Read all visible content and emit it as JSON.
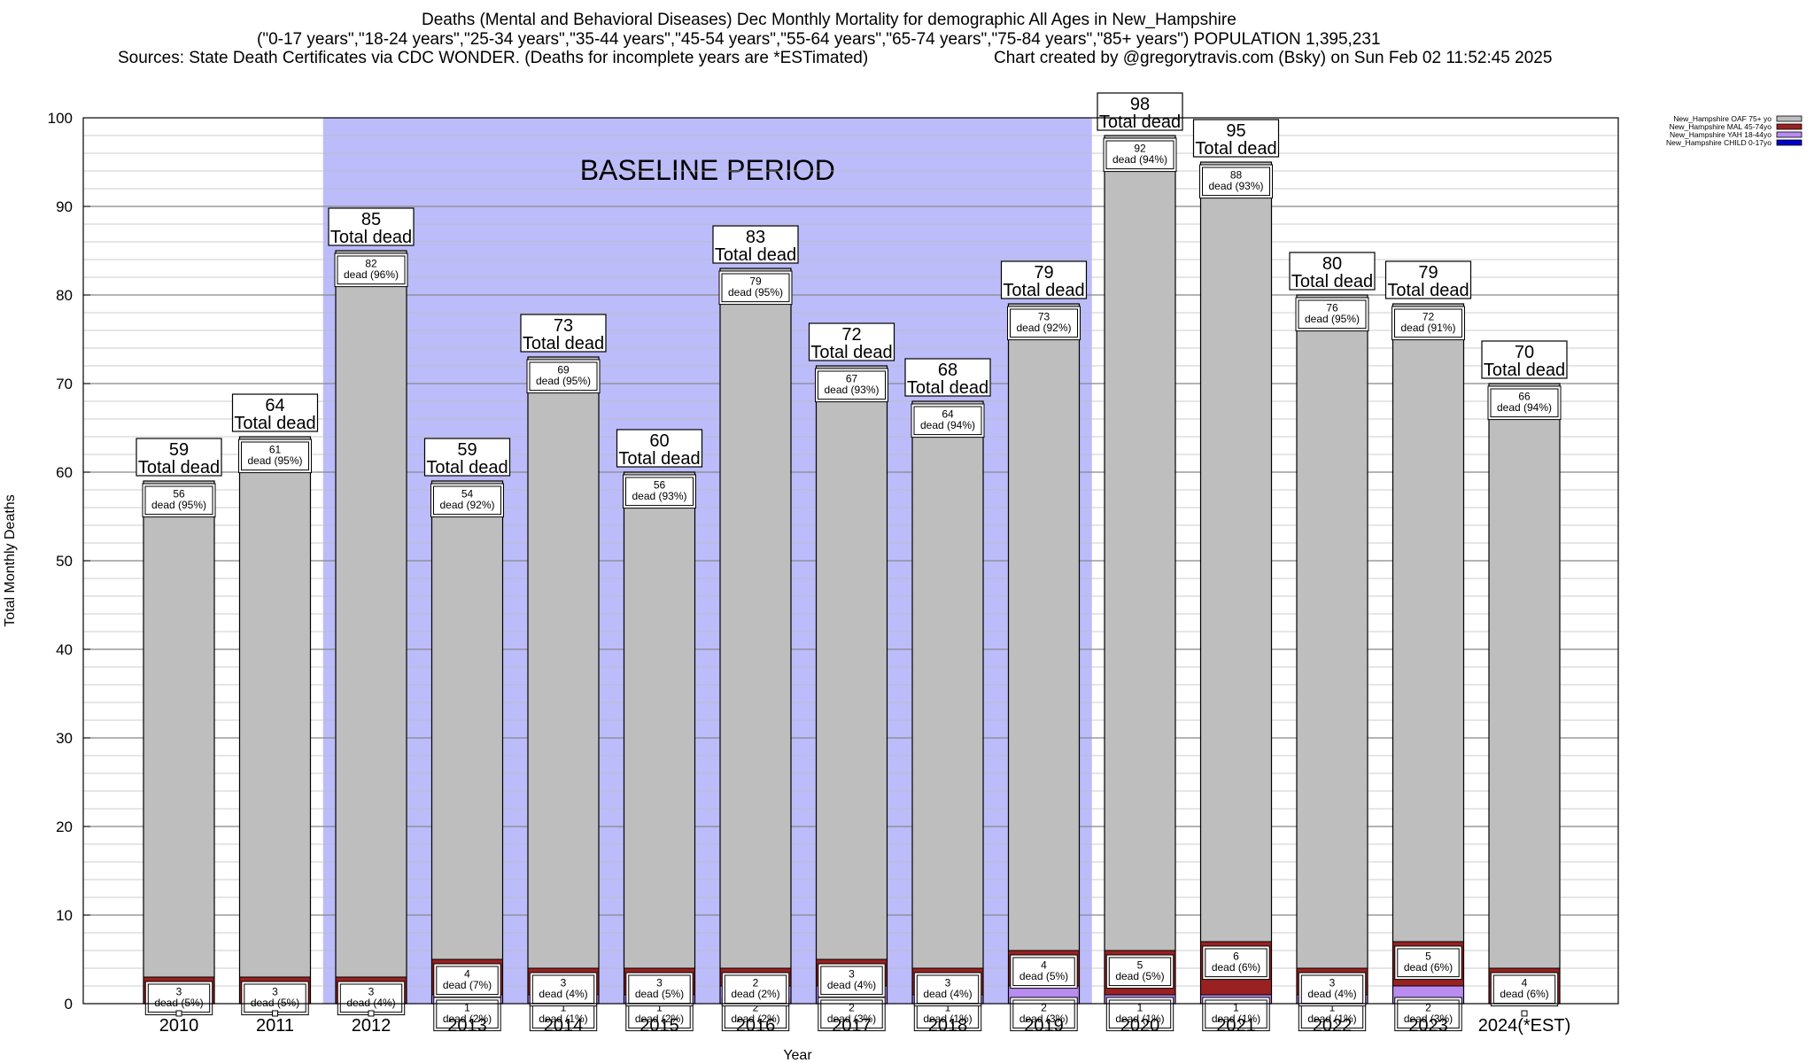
{
  "header": {
    "title": "Deaths (Mental and Behavioral Diseases) Dec Monthly Mortality for demographic All Ages in New_Hampshire",
    "subtitle": "(\"0-17 years\",\"18-24 years\",\"25-34 years\",\"35-44 years\",\"45-54 years\",\"55-64 years\",\"65-74 years\",\"75-84 years\",\"85+ years\") POPULATION 1,395,231",
    "sources": "Sources: State Death Certificates via CDC WONDER. (Deaths for incomplete years are *ESTimated)",
    "credit": "Chart created by @gregorytravis.com (Bsky) on Sun Feb 02 11:52:45 2025"
  },
  "chart_data": {
    "type": "bar",
    "stacked": true,
    "xlabel": "Year",
    "ylabel": "Total Monthly Deaths",
    "ylim": [
      0,
      100
    ],
    "yticks": [
      0,
      10,
      20,
      30,
      40,
      50,
      60,
      70,
      80,
      90,
      100
    ],
    "grid": true,
    "legend_position": "top-right",
    "categories": [
      "2010",
      "2011",
      "2012",
      "2013",
      "2014",
      "2015",
      "2016",
      "2017",
      "2018",
      "2019",
      "2020",
      "2021",
      "2022",
      "2023",
      "2024(*EST)"
    ],
    "totals": [
      59,
      64,
      85,
      59,
      73,
      60,
      83,
      72,
      68,
      79,
      98,
      95,
      80,
      79,
      70
    ],
    "total_label_suffix": "Total dead",
    "series": [
      {
        "name": "New_Hampshire CHILD 0-17yo",
        "color": "#0000c8",
        "values": [
          0,
          0,
          0,
          0,
          0,
          0,
          0,
          0,
          0,
          0,
          0,
          0,
          0,
          0,
          0
        ],
        "labels": [
          "",
          "",
          "",
          "",
          "",
          "",
          "",
          "",
          "",
          "",
          "",
          "",
          "",
          "",
          ""
        ]
      },
      {
        "name": "New_Hampshire YAH 18-44yo",
        "color": "#b98cf0",
        "values": [
          0,
          0,
          0,
          1,
          1,
          1,
          2,
          2,
          1,
          2,
          1,
          1,
          1,
          2,
          0
        ],
        "labels": [
          "",
          "",
          "",
          "1 dead (2%)",
          "1 dead (1%)",
          "1 dead (2%)",
          "2 dead (2%)",
          "2 dead (3%)",
          "1 dead (1%)",
          "2 dead (3%)",
          "1 dead (1%)",
          "1 dead (1%)",
          "1 dead (1%)",
          "2 dead (3%)",
          ""
        ]
      },
      {
        "name": "New_Hampshire MAL 45-74yo",
        "color": "#9a2121",
        "values": [
          3,
          3,
          3,
          4,
          3,
          3,
          2,
          3,
          3,
          4,
          5,
          6,
          3,
          5,
          4
        ],
        "labels": [
          "3 dead (5%)",
          "3 dead (5%)",
          "3 dead (4%)",
          "4 dead (7%)",
          "3 dead (4%)",
          "3 dead (5%)",
          "2 dead (2%)",
          "3 dead (4%)",
          "3 dead (4%)",
          "4 dead (5%)",
          "5 dead (5%)",
          "6 dead (6%)",
          "3 dead (4%)",
          "5 dead (6%)",
          "4 dead (6%)"
        ]
      },
      {
        "name": "New_Hampshire OAF 75+ yo",
        "color": "#bebebe",
        "values": [
          56,
          61,
          82,
          54,
          69,
          56,
          79,
          67,
          64,
          73,
          92,
          88,
          76,
          72,
          66
        ],
        "labels": [
          "56 dead (95%)",
          "61 dead (95%)",
          "82 dead (96%)",
          "54 dead (92%)",
          "69 dead (95%)",
          "56 dead (93%)",
          "79 dead (95%)",
          "67 dead (93%)",
          "64 dead (94%)",
          "73 dead (92%)",
          "92 dead (94%)",
          "88 dead (93%)",
          "76 dead (95%)",
          "72 dead (91%)",
          "66 dead (94%)"
        ]
      }
    ],
    "annotations": [
      {
        "text": "BASELINE PERIOD",
        "x_start": "2012",
        "x_end": "2019",
        "color": "#bcbcfa"
      }
    ]
  }
}
